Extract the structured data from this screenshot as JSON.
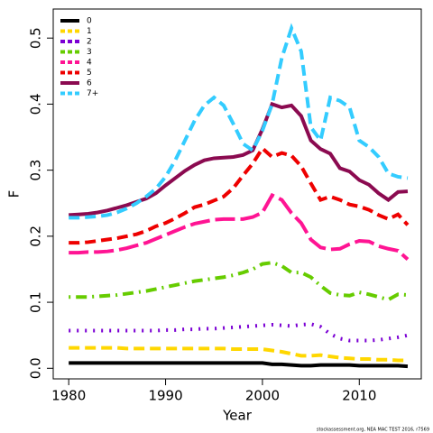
{
  "chart_data": {
    "type": "line",
    "xlabel": "Year",
    "ylabel": "F",
    "note": "stockassessment.org, NEA MAC TEST 2016, r7569",
    "x": [
      1980,
      1981,
      1982,
      1983,
      1984,
      1985,
      1986,
      1987,
      1988,
      1989,
      1990,
      1991,
      1992,
      1993,
      1994,
      1995,
      1996,
      1997,
      1998,
      1999,
      2000,
      2001,
      2002,
      2003,
      2004,
      2005,
      2006,
      2007,
      2008,
      2009,
      2010,
      2011,
      2012,
      2013,
      2014,
      2015
    ],
    "xlim": [
      1978.4,
      2016.4
    ],
    "xticks": [
      1980,
      1990,
      2000,
      2010
    ],
    "ylim": [
      -0.016,
      0.544
    ],
    "yticks": [
      {
        "value": 0,
        "label": "0.0"
      },
      {
        "value": 0.1,
        "label": "0.1"
      },
      {
        "value": 0.2,
        "label": "0.2"
      },
      {
        "value": 0.3,
        "label": "0.3"
      },
      {
        "value": 0.4,
        "label": "0.4"
      },
      {
        "value": 0.5,
        "label": "0.5"
      }
    ],
    "legend": "top-left",
    "series": [
      {
        "name": "0",
        "color": "#000000",
        "line_style": "solid",
        "values": [
          0.008,
          0.008,
          0.008,
          0.008,
          0.008,
          0.008,
          0.008,
          0.008,
          0.008,
          0.008,
          0.008,
          0.008,
          0.008,
          0.008,
          0.008,
          0.008,
          0.008,
          0.008,
          0.008,
          0.008,
          0.008,
          0.006,
          0.006,
          0.005,
          0.004,
          0.004,
          0.005,
          0.005,
          0.005,
          0.005,
          0.004,
          0.004,
          0.004,
          0.004,
          0.004,
          0.003
        ]
      },
      {
        "name": "1",
        "color": "#FFD700",
        "line_style": "dashed",
        "values": [
          0.031,
          0.031,
          0.031,
          0.031,
          0.031,
          0.031,
          0.03,
          0.03,
          0.03,
          0.03,
          0.03,
          0.03,
          0.03,
          0.03,
          0.03,
          0.03,
          0.03,
          0.029,
          0.029,
          0.029,
          0.029,
          0.027,
          0.025,
          0.022,
          0.019,
          0.019,
          0.02,
          0.018,
          0.016,
          0.015,
          0.014,
          0.014,
          0.013,
          0.013,
          0.012,
          0.012
        ]
      },
      {
        "name": "2",
        "color": "#7B00D4",
        "line_style": "dotted",
        "values": [
          0.057,
          0.057,
          0.057,
          0.057,
          0.057,
          0.057,
          0.057,
          0.057,
          0.057,
          0.057,
          0.058,
          0.058,
          0.059,
          0.059,
          0.06,
          0.06,
          0.061,
          0.062,
          0.063,
          0.064,
          0.065,
          0.066,
          0.065,
          0.064,
          0.066,
          0.067,
          0.063,
          0.052,
          0.045,
          0.042,
          0.042,
          0.042,
          0.043,
          0.045,
          0.047,
          0.05
        ]
      },
      {
        "name": "3",
        "color": "#66CC00",
        "line_style": "dotdash",
        "values": [
          0.108,
          0.108,
          0.108,
          0.109,
          0.11,
          0.111,
          0.113,
          0.115,
          0.117,
          0.12,
          0.123,
          0.126,
          0.129,
          0.132,
          0.134,
          0.136,
          0.138,
          0.141,
          0.145,
          0.15,
          0.158,
          0.16,
          0.155,
          0.145,
          0.145,
          0.138,
          0.125,
          0.114,
          0.111,
          0.11,
          0.115,
          0.112,
          0.108,
          0.104,
          0.112,
          0.111
        ]
      },
      {
        "name": "4",
        "color": "#FF1493",
        "line_style": "longdash",
        "values": [
          0.175,
          0.175,
          0.176,
          0.176,
          0.177,
          0.179,
          0.182,
          0.186,
          0.19,
          0.196,
          0.202,
          0.208,
          0.214,
          0.219,
          0.222,
          0.225,
          0.226,
          0.226,
          0.226,
          0.229,
          0.236,
          0.262,
          0.255,
          0.235,
          0.22,
          0.195,
          0.183,
          0.18,
          0.181,
          0.188,
          0.193,
          0.192,
          0.185,
          0.181,
          0.178,
          0.165
        ]
      },
      {
        "name": "5",
        "color": "#EE0000",
        "line_style": "dashed",
        "values": [
          0.19,
          0.19,
          0.191,
          0.193,
          0.195,
          0.197,
          0.2,
          0.203,
          0.208,
          0.215,
          0.22,
          0.227,
          0.235,
          0.244,
          0.248,
          0.254,
          0.26,
          0.273,
          0.292,
          0.31,
          0.333,
          0.32,
          0.326,
          0.322,
          0.306,
          0.28,
          0.255,
          0.26,
          0.255,
          0.248,
          0.245,
          0.24,
          0.232,
          0.226,
          0.233,
          0.217
        ]
      },
      {
        "name": "6",
        "color": "#8B0A50",
        "line_style": "solid",
        "values": [
          0.232,
          0.233,
          0.234,
          0.236,
          0.239,
          0.243,
          0.247,
          0.252,
          0.257,
          0.265,
          0.277,
          0.288,
          0.299,
          0.308,
          0.315,
          0.318,
          0.319,
          0.32,
          0.323,
          0.33,
          0.362,
          0.4,
          0.395,
          0.398,
          0.382,
          0.345,
          0.332,
          0.325,
          0.303,
          0.298,
          0.285,
          0.278,
          0.265,
          0.255,
          0.267,
          0.268
        ]
      },
      {
        "name": "7+",
        "color": "#33CCFF",
        "line_style": "dashed",
        "values": [
          0.228,
          0.228,
          0.229,
          0.23,
          0.232,
          0.236,
          0.242,
          0.25,
          0.26,
          0.272,
          0.29,
          0.315,
          0.345,
          0.375,
          0.398,
          0.41,
          0.398,
          0.37,
          0.34,
          0.33,
          0.36,
          0.4,
          0.47,
          0.515,
          0.48,
          0.365,
          0.345,
          0.41,
          0.405,
          0.395,
          0.345,
          0.335,
          0.32,
          0.295,
          0.29,
          0.288
        ]
      }
    ]
  }
}
